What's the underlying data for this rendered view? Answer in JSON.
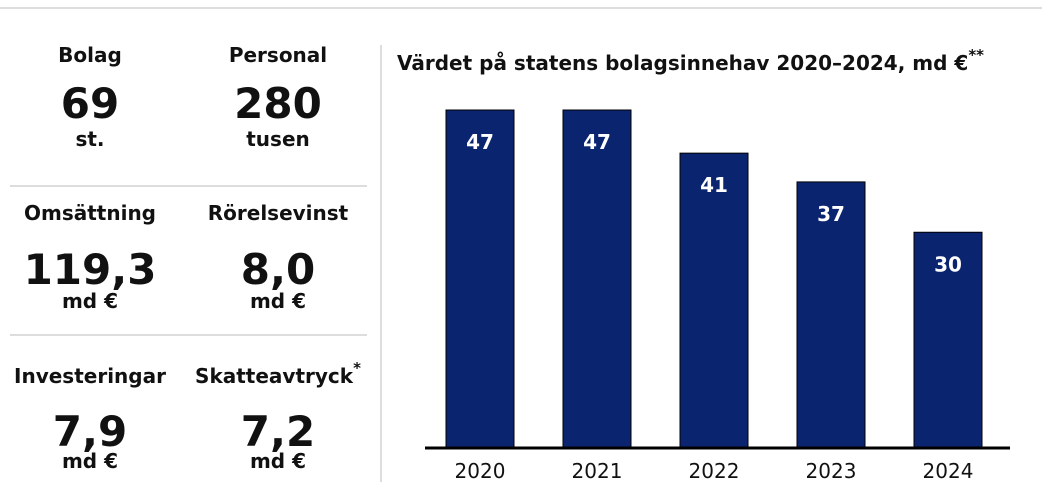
{
  "kpis": [
    {
      "label": "Bolag",
      "value": "69",
      "unit": "st."
    },
    {
      "label": "Personal",
      "value": "280",
      "unit": "tusen"
    },
    {
      "label": "Omsättning",
      "value": "119,3",
      "unit": "md €"
    },
    {
      "label": "Rörelsevinst",
      "value": "8,0",
      "unit": "md €"
    },
    {
      "label": "Investeringar",
      "value": "7,9",
      "unit": "md €"
    },
    {
      "label": "Skatteavtryck",
      "label_note": "*",
      "value": "7,2",
      "unit": "md €"
    }
  ],
  "chart_data": {
    "type": "bar",
    "title": "Värdet på statens bolagsinnehav 2020–2024, md €",
    "title_note": "**",
    "categories": [
      "2020",
      "2021",
      "2022",
      "2023",
      "2024"
    ],
    "values": [
      47,
      47,
      41,
      37,
      30
    ],
    "color": "#0b2470"
  }
}
